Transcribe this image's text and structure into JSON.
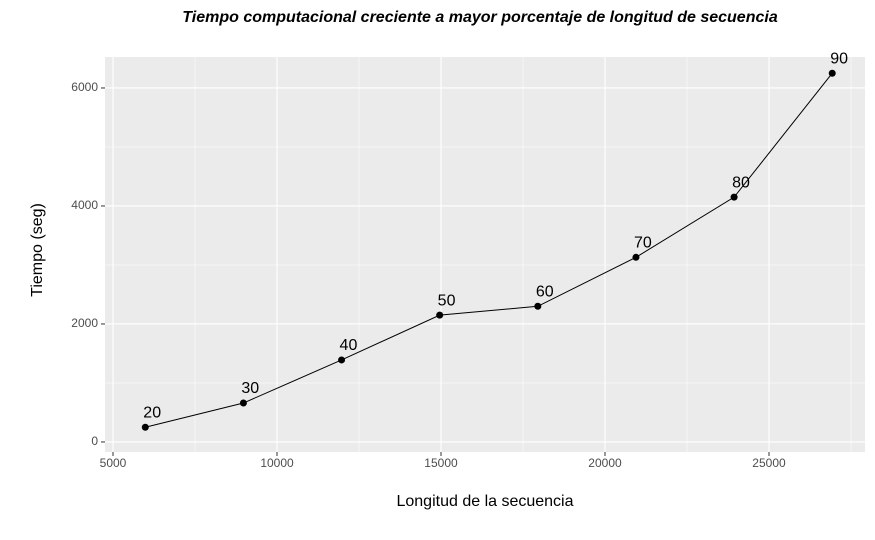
{
  "chart_data": {
    "type": "line",
    "title": "Tiempo computacional creciente a mayor porcentaje de longitud de secuencia",
    "x_label": "Longitud de la secuencia",
    "y_label": "Tiempo (seg)",
    "x": [
      5985,
      8976,
      11968,
      14960,
      17952,
      20944,
      23936,
      26928
    ],
    "series": [
      {
        "color": "#000000",
        "values": [
          250,
          660,
          1390,
          2150,
          2300,
          3130,
          4150,
          6250
        ]
      }
    ],
    "labels": [
      20,
      30,
      40,
      50,
      60,
      70,
      80,
      90
    ],
    "xlim": [
      4756,
      27927
    ],
    "ylim": [
      -170,
      6525
    ],
    "xticks": [
      5000,
      10000,
      15000,
      20000,
      25000
    ],
    "yticks": [
      0,
      2000,
      4000,
      6000
    ],
    "grid": true
  }
}
